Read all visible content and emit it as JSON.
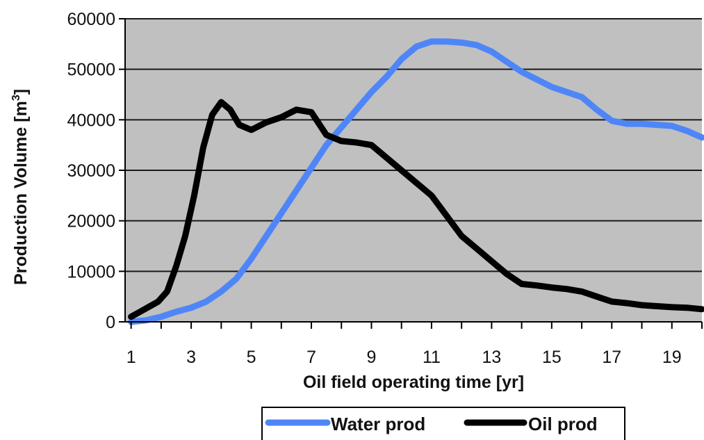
{
  "chart_data": {
    "type": "line",
    "xlabel": "Oil field operating time [yr]",
    "ylabel": "Production Volume [m",
    "ylabel_sup": "3",
    "ylabel_end": "]",
    "xlim": [
      0.8,
      20
    ],
    "ylim": [
      0,
      60000
    ],
    "yticks": [
      0,
      10000,
      20000,
      30000,
      40000,
      50000,
      60000
    ],
    "ytick_labels": [
      "0",
      "10000",
      "20000",
      "30000",
      "40000",
      "50000",
      "60000"
    ],
    "xticks": [
      1,
      3,
      5,
      7,
      9,
      11,
      13,
      15,
      17,
      19
    ],
    "xtick_labels": [
      "1",
      "3",
      "5",
      "7",
      "9",
      "11",
      "13",
      "15",
      "17",
      "19"
    ],
    "grid": true,
    "legend_position": "bottom",
    "colors": {
      "plot_background": "#c0c0c0",
      "grid": "#1a1a1a"
    },
    "series": [
      {
        "name": "Water prod",
        "color": "#4f86f7",
        "x": [
          1,
          1.5,
          2,
          2.5,
          3,
          3.5,
          4,
          4.5,
          5,
          5.5,
          6,
          6.5,
          7,
          7.5,
          8,
          8.5,
          9,
          9.5,
          10,
          10.5,
          11,
          11.5,
          12,
          12.5,
          13,
          13.5,
          14,
          14.5,
          15,
          15.5,
          16,
          16.5,
          17,
          17.5,
          18,
          18.5,
          19,
          19.5,
          20
        ],
        "y": [
          0,
          300,
          1000,
          2000,
          2800,
          4000,
          6000,
          8500,
          12500,
          17000,
          21500,
          26000,
          30500,
          35000,
          38500,
          42000,
          45500,
          48500,
          52000,
          54500,
          55500,
          55500,
          55300,
          54800,
          53500,
          51500,
          49500,
          48000,
          46500,
          45500,
          44500,
          42000,
          39800,
          39200,
          39200,
          39000,
          38800,
          37800,
          36500
        ]
      },
      {
        "name": "Oil prod",
        "color": "#000000",
        "x": [
          1,
          1.3,
          1.6,
          1.9,
          2.2,
          2.5,
          2.8,
          3.1,
          3.4,
          3.7,
          4,
          4.3,
          4.6,
          5,
          5.5,
          6,
          6.5,
          7,
          7.5,
          8,
          8.5,
          9,
          9.5,
          10,
          10.5,
          11,
          11.5,
          12,
          12.5,
          13,
          13.5,
          14,
          14.5,
          15,
          15.5,
          16,
          16.5,
          17,
          17.5,
          18,
          18.5,
          19,
          19.5,
          20
        ],
        "y": [
          1000,
          2000,
          3000,
          4000,
          6000,
          11000,
          17000,
          25000,
          34500,
          41000,
          43500,
          42000,
          39000,
          38000,
          39500,
          40500,
          42000,
          41500,
          37000,
          35800,
          35500,
          35000,
          32500,
          30000,
          27500,
          25000,
          21000,
          17000,
          14500,
          12000,
          9500,
          7500,
          7200,
          6800,
          6500,
          6000,
          5000,
          4000,
          3700,
          3300,
          3100,
          2900,
          2800,
          2500
        ]
      }
    ]
  }
}
